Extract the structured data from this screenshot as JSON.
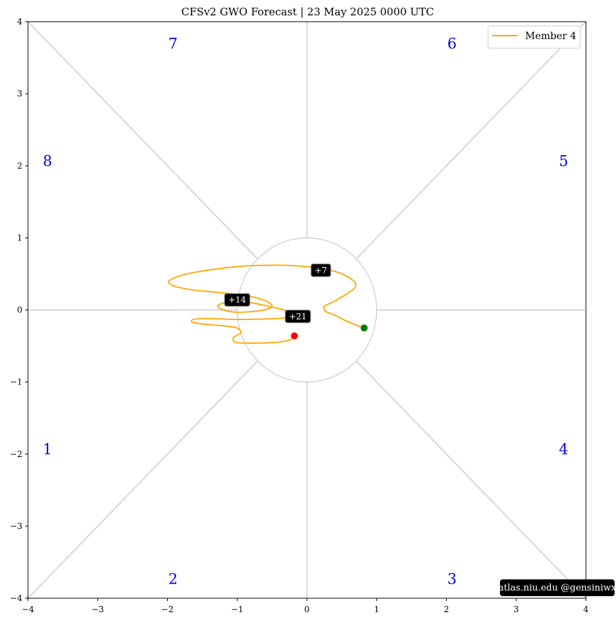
{
  "title": "CFSv2 GWO Forecast   |   23  May  2025 0000 UTC",
  "credit": "atlas.niu.edu  @gensiniwx",
  "colors": {
    "track": "#ffa500",
    "start_point": "#008000",
    "end_point": "#ff0000",
    "phase_label": "#0000ee",
    "guides": "#cccccc"
  },
  "chart_data": {
    "type": "line",
    "title": "CFSv2 GWO Forecast   |   23  May  2025 0000 UTC",
    "xlabel": "",
    "ylabel": "",
    "xlim": [
      -4,
      4
    ],
    "ylim": [
      -4,
      4
    ],
    "x_ticks": [
      -4,
      -3,
      -2,
      -1,
      0,
      1,
      2,
      3,
      4
    ],
    "y_ticks": [
      -4,
      -3,
      -2,
      -1,
      0,
      1,
      2,
      3,
      4
    ],
    "x_tick_labels": [
      "−4",
      "−3",
      "−2",
      "−1",
      "0",
      "1",
      "2",
      "3",
      "4"
    ],
    "y_tick_labels": [
      "−4",
      "−3",
      "−2",
      "−1",
      "0",
      "1",
      "2",
      "3",
      "4"
    ],
    "legend_position": "top-right",
    "unit_circle_radius": 1,
    "phase_labels": [
      {
        "label": "1",
        "x": -3.72,
        "y": -1.95
      },
      {
        "label": "2",
        "x": -1.92,
        "y": -3.75
      },
      {
        "label": "3",
        "x": 2.08,
        "y": -3.75
      },
      {
        "label": "4",
        "x": 3.68,
        "y": -1.95
      },
      {
        "label": "5",
        "x": 3.68,
        "y": 2.05
      },
      {
        "label": "6",
        "x": 2.08,
        "y": 3.68
      },
      {
        "label": "7",
        "x": -1.92,
        "y": 3.68
      },
      {
        "label": "8",
        "x": -3.72,
        "y": 2.05
      }
    ],
    "series": [
      {
        "name": "Member 4",
        "x": [
          0.82,
          0.6,
          0.42,
          0.27,
          0.25,
          0.35,
          0.5,
          0.68,
          0.69,
          0.6,
          0.45,
          0.2,
          0.0,
          -0.3,
          -0.6,
          -0.9,
          -1.2,
          -1.5,
          -1.8,
          -1.98,
          -1.9,
          -1.65,
          -1.35,
          -1.05,
          -0.78,
          -0.58,
          -0.5,
          -0.62,
          -0.9,
          -1.12,
          -1.28,
          -1.1,
          -0.8,
          -0.5,
          -0.25,
          -0.15,
          -0.2,
          -0.45,
          -0.8,
          -1.1,
          -1.4,
          -1.62,
          -1.64,
          -1.45,
          -1.2,
          -1.0,
          -0.95,
          -1.05,
          -1.02,
          -0.75,
          -0.45,
          -0.25,
          -0.2,
          -0.18
        ],
        "y": [
          -0.25,
          -0.17,
          -0.08,
          -0.02,
          0.05,
          0.1,
          0.18,
          0.3,
          0.38,
          0.45,
          0.52,
          0.58,
          0.6,
          0.62,
          0.62,
          0.61,
          0.58,
          0.54,
          0.48,
          0.4,
          0.33,
          0.28,
          0.25,
          0.22,
          0.18,
          0.12,
          0.05,
          0.0,
          -0.03,
          -0.02,
          0.05,
          0.12,
          0.1,
          0.04,
          -0.02,
          -0.07,
          -0.1,
          -0.12,
          -0.13,
          -0.13,
          -0.12,
          -0.13,
          -0.17,
          -0.2,
          -0.22,
          -0.25,
          -0.32,
          -0.38,
          -0.45,
          -0.46,
          -0.45,
          -0.42,
          -0.38,
          -0.36
        ]
      }
    ],
    "start_point": {
      "x": 0.82,
      "y": -0.25
    },
    "end_point": {
      "x": -0.18,
      "y": -0.36
    },
    "annotations": [
      {
        "label": "+7",
        "x": 0.2,
        "y": 0.55
      },
      {
        "label": "+14",
        "x": -1.0,
        "y": 0.14
      },
      {
        "label": "+21",
        "x": -0.13,
        "y": -0.09
      }
    ]
  }
}
